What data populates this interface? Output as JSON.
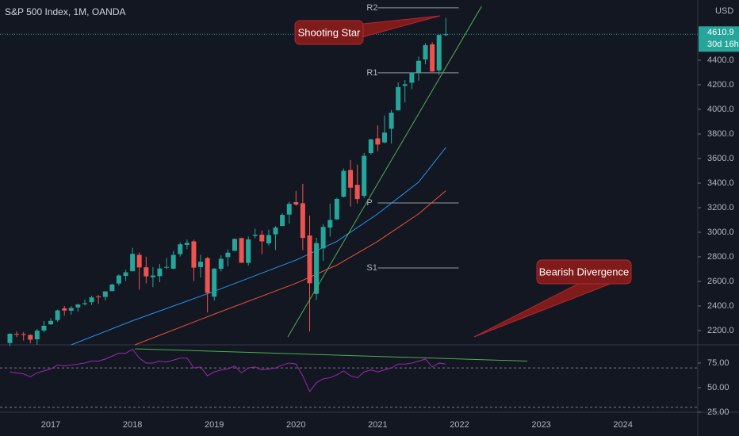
{
  "chart_data": [
    {
      "type": "candlestick",
      "title": "S&P 500 Index, 1M, OANDA",
      "currency": "USD",
      "last_price": 4610.9,
      "countdown": "30d 16h",
      "up_color": "#26a69a",
      "down_color": "#ef5350",
      "x": [
        2016.5,
        2016.583,
        2016.667,
        2016.75,
        2016.833,
        2016.917,
        2017,
        2017.083,
        2017.167,
        2017.25,
        2017.333,
        2017.417,
        2017.5,
        2017.583,
        2017.667,
        2017.75,
        2017.833,
        2017.917,
        2018,
        2018.083,
        2018.167,
        2018.25,
        2018.333,
        2018.417,
        2018.5,
        2018.583,
        2018.667,
        2018.75,
        2018.833,
        2018.917,
        2019,
        2019.083,
        2019.167,
        2019.25,
        2019.333,
        2019.417,
        2019.5,
        2019.583,
        2019.667,
        2019.75,
        2019.833,
        2019.917,
        2020,
        2020.083,
        2020.167,
        2020.25,
        2020.333,
        2020.417,
        2020.5,
        2020.583,
        2020.667,
        2020.75,
        2020.833,
        2020.917,
        2021,
        2021.083,
        2021.167,
        2021.25,
        2021.333,
        2021.417,
        2021.5,
        2021.583,
        2021.667,
        2021.75,
        2021.833
      ],
      "open": [
        2099,
        2173,
        2171,
        2164,
        2129,
        2201,
        2251,
        2285,
        2381,
        2362,
        2388,
        2415,
        2431,
        2477,
        2474,
        2521,
        2583,
        2645,
        2683,
        2816,
        2715,
        2634,
        2643,
        2718,
        2704,
        2822,
        2897,
        2926,
        2717,
        2790,
        2476,
        2703,
        2798,
        2849,
        2953,
        2751,
        2971,
        2980,
        2910,
        2983,
        3051,
        3144,
        3245,
        3236,
        2974,
        2499,
        2869,
        3038,
        3105,
        3289,
        3507,
        3386,
        3296,
        3645,
        3764,
        3731,
        3842,
        3992,
        4192,
        4217,
        4300,
        4406,
        4529,
        4317,
        4610
      ],
      "high": [
        2178,
        2194,
        2188,
        2169,
        2214,
        2278,
        2301,
        2371,
        2401,
        2399,
        2418,
        2454,
        2484,
        2491,
        2520,
        2582,
        2657,
        2695,
        2873,
        2835,
        2801,
        2717,
        2742,
        2791,
        2848,
        2917,
        2941,
        2940,
        2816,
        2800,
        2708,
        2813,
        2861,
        2950,
        2955,
        2965,
        3028,
        3014,
        3022,
        3050,
        3155,
        3248,
        3338,
        3394,
        3136,
        2955,
        3068,
        3233,
        3280,
        3519,
        3588,
        3550,
        3646,
        3760,
        3870,
        3950,
        3995,
        4219,
        4238,
        4302,
        4429,
        4538,
        4546,
        4609,
        4744
      ],
      "low": [
        2074,
        2147,
        2119,
        2097,
        2084,
        2187,
        2245,
        2271,
        2322,
        2329,
        2353,
        2405,
        2408,
        2417,
        2446,
        2520,
        2566,
        2605,
        2682,
        2533,
        2585,
        2553,
        2594,
        2699,
        2699,
        2803,
        2864,
        2603,
        2631,
        2347,
        2444,
        2681,
        2722,
        2848,
        2751,
        2728,
        2952,
        2822,
        2892,
        2856,
        3050,
        3071,
        3215,
        2855,
        2192,
        2448,
        2767,
        2966,
        3101,
        3284,
        3209,
        3233,
        3279,
        3633,
        3662,
        3725,
        3723,
        3992,
        4056,
        4164,
        4233,
        4367,
        4306,
        4279,
        4595
      ],
      "close": [
        2174,
        2171,
        2168,
        2126,
        2199,
        2239,
        2279,
        2364,
        2363,
        2384,
        2412,
        2423,
        2470,
        2472,
        2519,
        2575,
        2648,
        2674,
        2824,
        2714,
        2641,
        2648,
        2705,
        2718,
        2816,
        2902,
        2914,
        2712,
        2760,
        2507,
        2704,
        2784,
        2834,
        2946,
        2752,
        2942,
        2980,
        2926,
        2977,
        3038,
        3141,
        3231,
        3226,
        2954,
        2585,
        2912,
        3044,
        3100,
        3271,
        3500,
        3363,
        3270,
        3622,
        3756,
        3714,
        3811,
        3973,
        4181,
        4204,
        4298,
        4395,
        4523,
        4308,
        4605,
        4611
      ],
      "lines": [
        {
          "color": "#2196f3",
          "x": [
            2017.25,
            2018,
            2019,
            2020,
            2020.5,
            2021,
            2021.5,
            2021.833
          ],
          "values": [
            2084,
            2280,
            2520,
            2774,
            2926,
            3150,
            3408,
            3690
          ]
        },
        {
          "color": "#f0522f",
          "x": [
            2018.03,
            2019,
            2020,
            2020.5,
            2021,
            2021.5,
            2021.833
          ],
          "values": [
            2084,
            2334,
            2585,
            2733,
            2926,
            3150,
            3338
          ]
        }
      ],
      "trendlines": [
        {
          "color": "#4caf50",
          "x": [
            2019.9,
            2022.27
          ],
          "values": [
            2148,
            4838
          ]
        }
      ],
      "levels": [
        {
          "label": "R2",
          "value": 4826
        },
        {
          "label": "R1",
          "value": 4297
        },
        {
          "label": "P",
          "value": 3239
        },
        {
          "label": "S1",
          "value": 2710
        }
      ],
      "level_x": [
        2021,
        2021.99
      ],
      "annotations": [
        "Shooting Star",
        "Bearish Divergence"
      ],
      "xlim": [
        2016.379,
        2024.915
      ],
      "xticks": [
        2017,
        2018,
        2019,
        2020,
        2021,
        2022,
        2023,
        2024
      ],
      "ylim": [
        2084,
        4890
      ],
      "yticks": [
        {
          "value": 2200,
          "label": "2200.0"
        },
        {
          "value": 2400,
          "label": "2400.0"
        },
        {
          "value": 2600,
          "label": "2600.0"
        },
        {
          "value": 2800,
          "label": "2800.0"
        },
        {
          "value": 3000,
          "label": "3000.0"
        },
        {
          "value": 3200,
          "label": "3200.0"
        },
        {
          "value": 3400,
          "label": "3400.0"
        },
        {
          "value": 3600,
          "label": "3600.0"
        },
        {
          "value": 3800,
          "label": "3800.0"
        },
        {
          "value": 4000,
          "label": "4000.0"
        },
        {
          "value": 4200,
          "label": "4200.0"
        },
        {
          "value": 4400,
          "label": "4400.0"
        }
      ]
    },
    {
      "type": "line",
      "color": "#9c27b0",
      "x": [
        2016.5,
        2016.583,
        2016.667,
        2016.75,
        2016.833,
        2016.917,
        2017,
        2017.083,
        2017.167,
        2017.25,
        2017.333,
        2017.417,
        2017.5,
        2017.583,
        2017.667,
        2017.75,
        2017.833,
        2017.917,
        2018,
        2018.083,
        2018.167,
        2018.25,
        2018.333,
        2018.417,
        2018.5,
        2018.583,
        2018.667,
        2018.75,
        2018.833,
        2018.917,
        2019,
        2019.083,
        2019.167,
        2019.25,
        2019.333,
        2019.417,
        2019.5,
        2019.583,
        2019.667,
        2019.75,
        2019.833,
        2019.917,
        2020,
        2020.083,
        2020.167,
        2020.25,
        2020.333,
        2020.417,
        2020.5,
        2020.583,
        2020.667,
        2020.75,
        2020.833,
        2020.917,
        2021,
        2021.083,
        2021.167,
        2021.25,
        2021.333,
        2021.417,
        2021.5,
        2021.583,
        2021.667,
        2021.75,
        2021.833
      ],
      "values": [
        66,
        65,
        64,
        61,
        65,
        67,
        69,
        73,
        72,
        73,
        74,
        75,
        77,
        77,
        79,
        82,
        85,
        85,
        89,
        80,
        75,
        75,
        77,
        76,
        78,
        80,
        80,
        70,
        71,
        62,
        66,
        68,
        69,
        72,
        65,
        70,
        71,
        68,
        69,
        70,
        73,
        75,
        74,
        62,
        46,
        55,
        59,
        60,
        63,
        67,
        62,
        60,
        66,
        68,
        66,
        68,
        70,
        74,
        74,
        75,
        77,
        79,
        71,
        75,
        74
      ],
      "bands": [
        30,
        70
      ],
      "trendlines": [
        {
          "color": "#4caf50",
          "x": [
            2018.03,
            2022.83
          ],
          "values": [
            89.5,
            77
          ]
        }
      ],
      "xlim": [
        2016.379,
        2024.915
      ],
      "ylim": [
        25,
        93.5
      ],
      "yticks": [
        {
          "value": 75,
          "label": "75.00"
        },
        {
          "value": 50,
          "label": "50.00"
        },
        {
          "value": 25,
          "label": "25.00"
        }
      ]
    }
  ]
}
